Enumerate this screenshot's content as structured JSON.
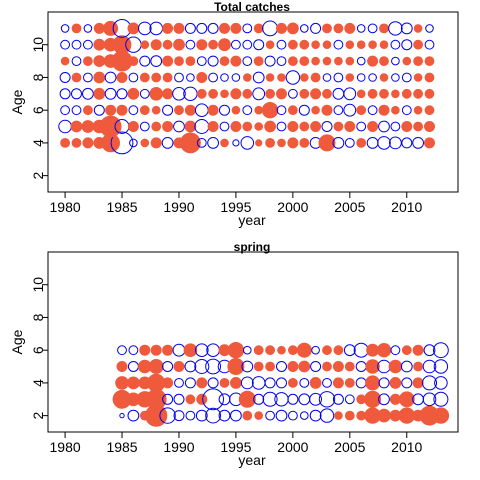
{
  "chart_data": [
    {
      "type": "scatter",
      "subtype": "bubble",
      "title": "Total catches",
      "xlabel": "year",
      "ylabel": "Age",
      "xlim": [
        1978.5,
        2014.5
      ],
      "ylim": [
        1,
        12
      ],
      "xticks": [
        1980,
        1985,
        1990,
        1995,
        2000,
        2005,
        2010
      ],
      "yticks": [
        2,
        4,
        6,
        8,
        10
      ],
      "ages": [
        4,
        5,
        6,
        7,
        8,
        9,
        10,
        11
      ],
      "years": [
        1980,
        1981,
        1982,
        1983,
        1984,
        1985,
        1986,
        1987,
        1988,
        1989,
        1990,
        1991,
        1992,
        1993,
        1994,
        1995,
        1996,
        1997,
        1998,
        1999,
        2000,
        2001,
        2002,
        2003,
        2004,
        2005,
        2006,
        2007,
        2008,
        2009,
        2010,
        2011,
        2012
      ],
      "encoding": "negative residuals as blue open circles, positive residuals as red filled circles; radius proportional to |value|",
      "grid": false,
      "residuals": {
        "4": [
          0.4,
          0.4,
          0.5,
          0.6,
          1.6,
          -2.4,
          -0.3,
          0.3,
          0.5,
          -0.6,
          0.5,
          2.0,
          -0.4,
          -0.6,
          0.3,
          -0.2,
          -0.8,
          0.2,
          0.4,
          0.3,
          0.5,
          0.4,
          -0.6,
          1.3,
          -0.6,
          -0.4,
          0.4,
          -0.6,
          -0.8,
          -0.7,
          -0.5,
          -0.6,
          0.5
        ],
        "5": [
          -0.8,
          0.6,
          0.7,
          0.8,
          2.2,
          -1.0,
          0.5,
          -0.4,
          0.4,
          0.5,
          -0.6,
          0.6,
          -1.0,
          0.5,
          -0.4,
          0.5,
          0.4,
          0.3,
          0.6,
          -0.4,
          0.5,
          0.4,
          0.5,
          -0.5,
          0.4,
          0.5,
          -0.4,
          0.5,
          -0.6,
          -0.4,
          0.5,
          0.4,
          0.5
        ],
        "6": [
          -0.4,
          -0.4,
          0.4,
          -0.5,
          0.5,
          0.5,
          -0.4,
          0.4,
          0.3,
          -0.5,
          0.4,
          0.5,
          -0.8,
          0.5,
          -0.5,
          0.3,
          -0.4,
          0.3,
          1.2,
          -0.4,
          0.4,
          -0.5,
          0.3,
          0.5,
          -0.4,
          -0.7,
          0.4,
          -0.4,
          0.5,
          0.3,
          -0.4,
          0.3,
          0.4
        ],
        "7": [
          -0.5,
          -0.5,
          -0.6,
          0.6,
          -0.6,
          -0.5,
          0.6,
          -0.4,
          0.8,
          0.5,
          -0.8,
          -0.9,
          0.4,
          0.4,
          0.3,
          0.5,
          0.4,
          -0.7,
          0.4,
          0.5,
          -0.4,
          0.4,
          0.5,
          0.4,
          -0.6,
          -0.7,
          0.3,
          0.4,
          0.4,
          0.3,
          0.4,
          0.4,
          0.4
        ],
        "8": [
          -0.5,
          0.4,
          -0.4,
          0.6,
          -0.6,
          0.5,
          -0.4,
          0.4,
          0.4,
          0.4,
          -0.4,
          -0.3,
          0.5,
          -0.4,
          -0.3,
          -0.3,
          0.3,
          -0.6,
          0.3,
          0.3,
          -0.9,
          0.3,
          0.4,
          -0.3,
          -0.4,
          0.3,
          -0.3,
          -0.3,
          0.3,
          -0.3,
          -0.4,
          0.3,
          0.4
        ],
        "9": [
          0.3,
          -0.4,
          0.4,
          0.6,
          0.8,
          2.0,
          0.4,
          -0.5,
          -0.6,
          0.5,
          0.4,
          0.4,
          -0.4,
          -0.5,
          0.4,
          0.5,
          -0.4,
          0.4,
          -0.5,
          -0.4,
          0.4,
          0.4,
          0.3,
          0.3,
          0.3,
          0.3,
          -0.3,
          0.5,
          0.4,
          -0.3,
          0.3,
          0.4,
          0.4
        ],
        "10": [
          -0.4,
          -0.4,
          -0.4,
          0.6,
          0.8,
          1.6,
          -1.2,
          0.3,
          0.5,
          0.4,
          0.6,
          -0.4,
          0.5,
          0.4,
          0.7,
          -0.4,
          -0.4,
          -0.5,
          0.3,
          -0.4,
          0.4,
          0.4,
          0.3,
          0.3,
          -0.4,
          0.3,
          0.3,
          0.3,
          0.3,
          -0.4,
          -0.5,
          0.4,
          -0.4
        ],
        "11": [
          -0.3,
          0.4,
          -0.3,
          0.5,
          1.0,
          -1.6,
          0.6,
          -0.8,
          -0.8,
          0.5,
          0.5,
          -0.5,
          -0.5,
          -0.5,
          0.5,
          0.5,
          -0.4,
          0.4,
          -1.1,
          0.5,
          0.6,
          -0.3,
          -0.5,
          0.4,
          0.4,
          0.5,
          -0.3,
          -0.4,
          0.4,
          -0.9,
          -0.6,
          0.3,
          -0.3
        ]
      }
    },
    {
      "type": "scatter",
      "subtype": "bubble",
      "title": "spring",
      "xlabel": "year",
      "ylabel": "Age",
      "xlim": [
        1978.5,
        2014.5
      ],
      "ylim": [
        1,
        12
      ],
      "xticks": [
        1980,
        1985,
        1990,
        1995,
        2000,
        2005,
        2010
      ],
      "yticks": [
        2,
        4,
        6,
        8,
        10
      ],
      "ages": [
        2,
        3,
        4,
        5,
        6
      ],
      "years": [
        1985,
        1986,
        1987,
        1988,
        1989,
        1990,
        1991,
        1992,
        1993,
        1994,
        1995,
        1996,
        1997,
        1998,
        1999,
        2000,
        2001,
        2002,
        2003,
        2004,
        2005,
        2006,
        2007,
        2008,
        2009,
        2010,
        2011,
        2012,
        2013
      ],
      "encoding": "negative residuals as blue open circles, positive residuals as red filled circles; radius proportional to |value|",
      "grid": false,
      "residuals": {
        "2": [
          -0.1,
          -0.6,
          0.4,
          2.3,
          -1.2,
          -0.5,
          -0.4,
          -0.6,
          -1.1,
          -0.6,
          -0.6,
          0.4,
          0.3,
          -0.4,
          -0.6,
          -0.4,
          -0.3,
          -0.6,
          -0.9,
          0.3,
          0.4,
          0.4,
          1.2,
          0.8,
          0.6,
          1.2,
          0.6,
          1.8,
          1.2
        ],
        "3": [
          1.6,
          0.8,
          1.2,
          2.0,
          -0.5,
          -0.5,
          0.4,
          0.5,
          -2.2,
          -0.6,
          -0.8,
          1.3,
          -0.5,
          -1.0,
          -0.9,
          -0.5,
          -0.6,
          -0.7,
          -1.2,
          -0.5,
          -0.4,
          0.4,
          1.3,
          -0.6,
          0.5,
          1.1,
          -0.6,
          -0.8,
          -1.0
        ],
        "4": [
          0.8,
          0.7,
          0.7,
          1.5,
          0.5,
          -0.4,
          -0.5,
          0.5,
          -0.5,
          0.4,
          0.6,
          -0.7,
          -0.8,
          -0.5,
          -0.5,
          0.4,
          -0.4,
          0.6,
          -0.4,
          0.5,
          0.4,
          -0.5,
          1.0,
          -0.5,
          0.6,
          -0.5,
          0.5,
          -1.0,
          -0.8
        ],
        "5": [
          0.5,
          -0.5,
          0.8,
          1.0,
          -0.5,
          0.5,
          -0.6,
          -1.0,
          -1.1,
          -0.8,
          1.3,
          -0.6,
          0.4,
          0.4,
          -0.5,
          0.5,
          0.6,
          -0.5,
          0.4,
          0.5,
          0.4,
          -0.5,
          0.9,
          -0.8,
          0.8,
          -0.6,
          0.4,
          -0.8,
          -0.9
        ],
        "6": [
          -0.4,
          -0.4,
          0.5,
          0.5,
          0.5,
          -0.7,
          0.8,
          -0.8,
          -0.8,
          0.6,
          1.2,
          -0.3,
          0.4,
          0.4,
          0.3,
          0.4,
          1.0,
          -0.3,
          0.4,
          0.4,
          -0.6,
          -1.0,
          0.7,
          0.9,
          -0.4,
          0.4,
          0.5,
          -0.6,
          -1.1
        ]
      }
    }
  ]
}
